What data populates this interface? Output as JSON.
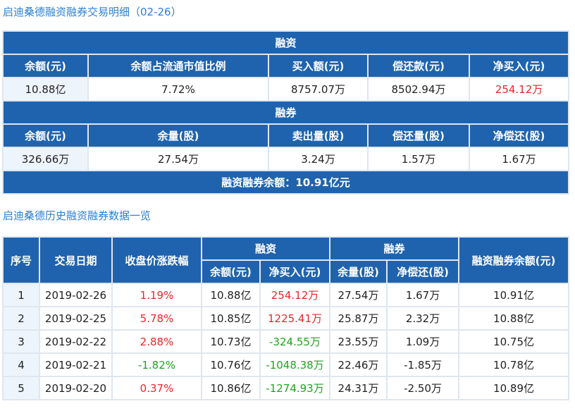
{
  "title1": "启迪桑德融资融券交易明细（02-26）",
  "summary": {
    "rz_header": "融资",
    "rz_cols": [
      "余额(元)",
      "余额占流通市值比例",
      "买入额(元)",
      "偿还款(元)",
      "净买入(元)"
    ],
    "rz_vals": [
      "10.88亿",
      "7.72%",
      "8757.07万",
      "8502.94万",
      "254.12万"
    ],
    "rq_header": "融券",
    "rq_cols": [
      "余额(元)",
      "余量(股)",
      "卖出量(股)",
      "偿还量(股)",
      "净偿还(股)"
    ],
    "rq_vals": [
      "326.66万",
      "27.54万",
      "3.24万",
      "1.57万",
      "1.67万"
    ],
    "total": "融资融券余额：10.91亿元"
  },
  "title2": "启迪桑德历史融资融券数据一览",
  "history": {
    "headers": {
      "seq": "序号",
      "date": "交易日期",
      "change": "收盘价涨跌幅",
      "rz": "融资",
      "rq": "融券",
      "total": "融资融券余额(元)",
      "rz_bal": "余额(元)",
      "rz_net": "净买入(元)",
      "rq_bal": "余量(股)",
      "rq_net": "净偿还(股)"
    },
    "rows": [
      [
        "1",
        "2019-02-26",
        "1.19%",
        "10.88亿",
        "254.12万",
        "27.54万",
        "1.67万",
        "10.91亿"
      ],
      [
        "2",
        "2019-02-25",
        "5.78%",
        "10.85亿",
        "1225.41万",
        "25.87万",
        "2.32万",
        "10.88亿"
      ],
      [
        "3",
        "2019-02-22",
        "2.88%",
        "10.73亿",
        "-324.55万",
        "23.55万",
        "1.09万",
        "10.75亿"
      ],
      [
        "4",
        "2019-02-21",
        "-1.82%",
        "10.76亿",
        "-1048.38万",
        "22.46万",
        "-1.85万",
        "10.78亿"
      ],
      [
        "5",
        "2019-02-20",
        "0.37%",
        "10.86亿",
        "-1274.93万",
        "24.31万",
        "-2.50万",
        "10.89亿"
      ]
    ]
  },
  "colors": {
    "header": "#1f63ae",
    "up": "#e8262a",
    "down": "#1ea51e",
    "title": "#2a7fd4"
  }
}
